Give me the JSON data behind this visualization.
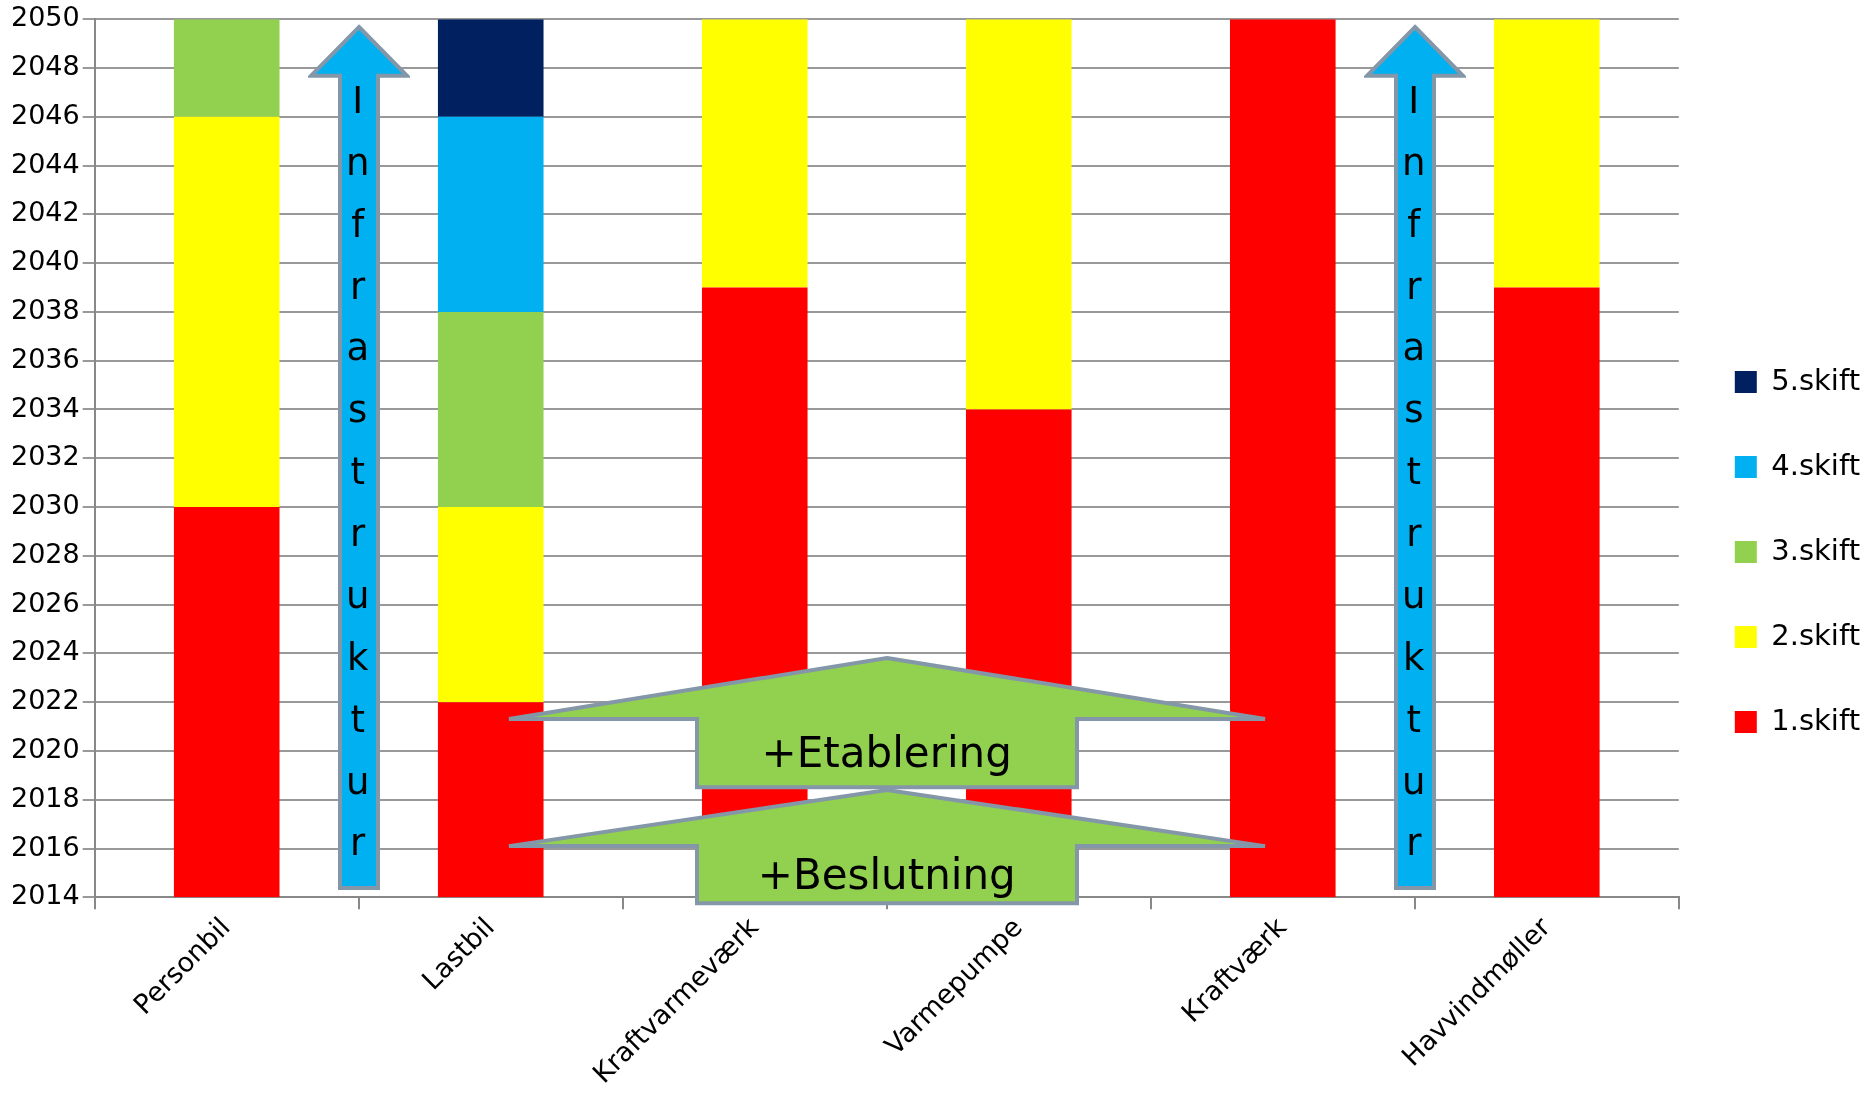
{
  "chart_data": {
    "type": "bar",
    "categories": [
      "Personbil",
      "Lastbil",
      "Kraftvarmeværk",
      "Varmepumpe",
      "Kraftværk",
      "Havvindmøller"
    ],
    "series": [
      {
        "name": "1.skift",
        "color": "#ff0000",
        "base": [
          2014,
          2014,
          2014,
          2014,
          2014,
          2014
        ],
        "values": [
          16,
          8,
          25,
          20,
          36,
          25
        ]
      },
      {
        "name": "2.skift",
        "color": "#ffff00",
        "base": [
          2030,
          2022,
          2039,
          2034,
          null,
          2039
        ],
        "values": [
          16,
          8,
          11,
          16,
          null,
          11
        ]
      },
      {
        "name": "3.skift",
        "color": "#92d050",
        "base": [
          2046,
          2030,
          null,
          null,
          null,
          null
        ],
        "values": [
          4,
          8,
          null,
          null,
          null,
          null
        ]
      },
      {
        "name": "4.skift",
        "color": "#00b0f0",
        "base": [
          null,
          2038,
          null,
          null,
          null,
          null
        ],
        "values": [
          null,
          8,
          null,
          null,
          null,
          null
        ]
      },
      {
        "name": "5.skift",
        "color": "#002060",
        "base": [
          null,
          2046,
          null,
          null,
          null,
          null
        ],
        "values": [
          null,
          4,
          null,
          null,
          null,
          null
        ]
      }
    ],
    "ylim": [
      2014,
      2050
    ],
    "yticks": [
      2014,
      2016,
      2018,
      2020,
      2022,
      2024,
      2026,
      2028,
      2030,
      2032,
      2034,
      2036,
      2038,
      2040,
      2042,
      2044,
      2046,
      2048,
      2050
    ],
    "grid": "y",
    "legend": "right",
    "annotations": [
      "Infrastruktur",
      "Infrastruktur",
      "+Etablering",
      "+Beslutning"
    ]
  }
}
